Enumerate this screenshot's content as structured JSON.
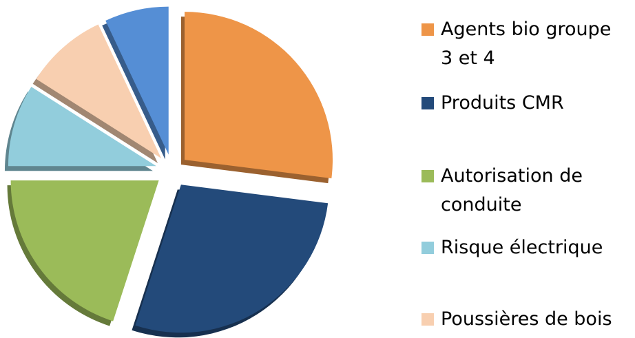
{
  "chart_data": {
    "type": "pie",
    "categories": [
      "Agents bio groupe 3 et 4",
      "Produits CMR",
      "Autorisation de conduite",
      "Risque électrique",
      "Poussières de bois",
      null
    ],
    "values": [
      27,
      28,
      20,
      9,
      9,
      7
    ],
    "colors": [
      "#ee9548",
      "#234a7a",
      "#9bbb59",
      "#92cddc",
      "#f8cfb0",
      "#558ed5"
    ],
    "legend": "right"
  }
}
